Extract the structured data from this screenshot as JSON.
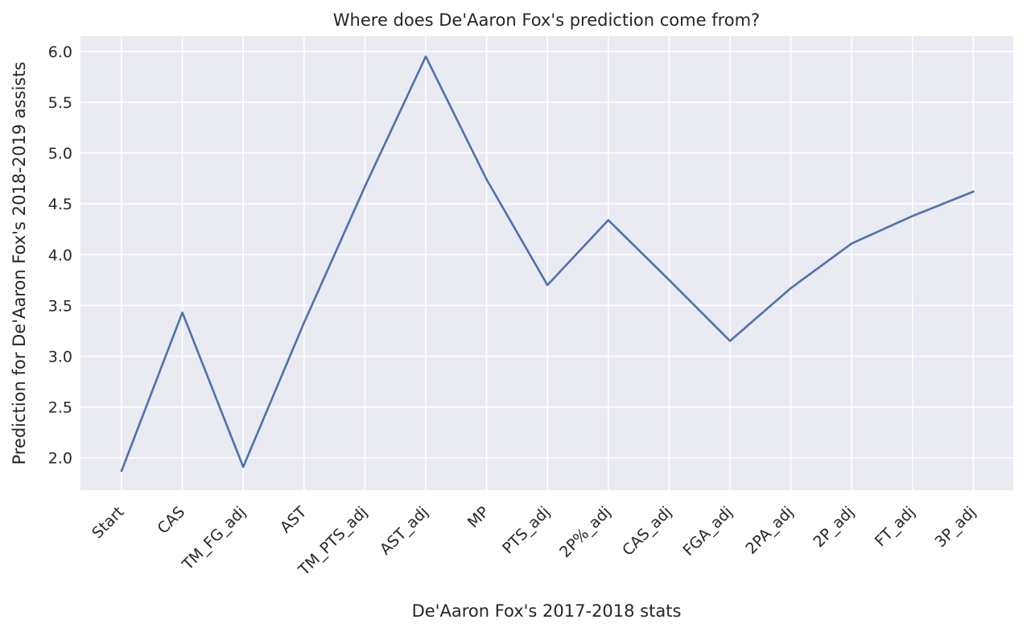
{
  "chart_data": {
    "type": "line",
    "title": "Where does De'Aaron Fox's prediction come from?",
    "xlabel": "De'Aaron Fox's 2017-2018 stats",
    "ylabel": "Prediction for De'Aaron Fox's 2018-2019 assists",
    "categories": [
      "Start",
      "CAS",
      "TM_FG_adj",
      "AST",
      "TM_PTS_adj",
      "AST_adj",
      "MP",
      "PTS_adj",
      "2P%_adj",
      "CAS_adj",
      "FGA_adj",
      "2PA_adj",
      "2P_adj",
      "FT_adj",
      "3P_adj"
    ],
    "series": [
      {
        "values": [
          1.87,
          3.43,
          1.91,
          3.33,
          4.67,
          5.95,
          4.74,
          3.7,
          4.34,
          3.75,
          3.15,
          3.67,
          4.11,
          4.38,
          4.62
        ]
      }
    ],
    "ylim": [
      1.68,
      6.15
    ],
    "yticks": [
      2.0,
      2.5,
      3.0,
      3.5,
      4.0,
      4.5,
      5.0,
      5.5,
      6.0
    ],
    "ytick_labels": [
      "2.0",
      "2.5",
      "3.0",
      "3.5",
      "4.0",
      "4.5",
      "5.0",
      "5.5",
      "6.0"
    ],
    "grid": true,
    "colors": {
      "line": "#4c72b0",
      "plot_background": "#eaeaf2",
      "grid": "#ffffff"
    }
  }
}
